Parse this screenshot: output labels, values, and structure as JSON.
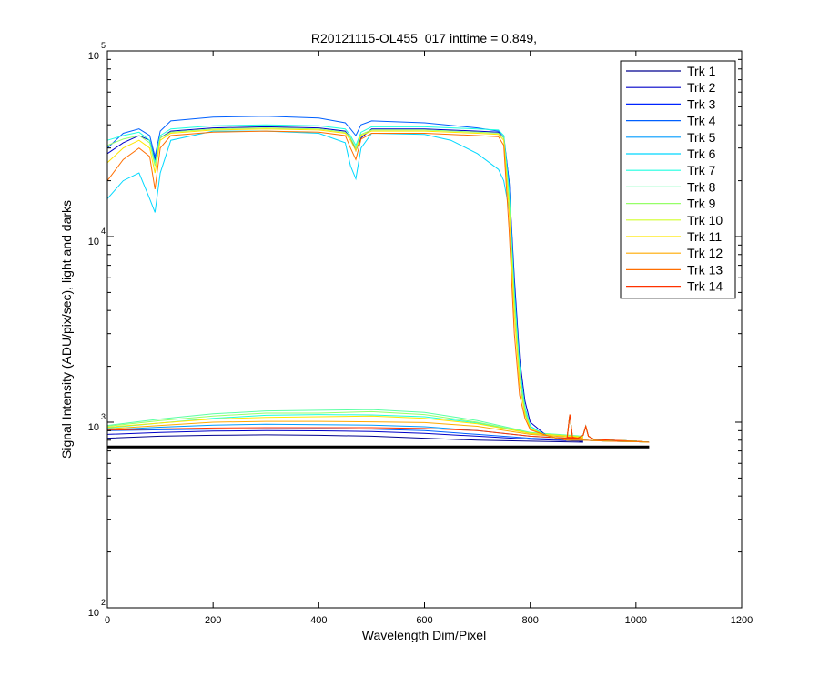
{
  "chart_data": {
    "type": "line",
    "title": "R20121115-OL455_017 inttime = 0.849,",
    "xlabel": "Wavelength Dim/Pixel",
    "ylabel": "Signal Intensity (ADU/pix/sec), light and darks",
    "xlim": [
      0,
      1200
    ],
    "ylim": [
      100,
      100000
    ],
    "yscale": "log",
    "grid": false,
    "legend_position": "top-right",
    "x_ticks": [
      0,
      200,
      400,
      600,
      800,
      1000,
      1200
    ],
    "x_tick_labels": [
      "0",
      "200",
      "400",
      "600",
      "800",
      "1000",
      "1200"
    ],
    "y_ticks": [
      {
        "value": 100,
        "base": "10",
        "exp": "2"
      },
      {
        "value": 1000,
        "base": "10",
        "exp": "3"
      },
      {
        "value": 10000,
        "base": "10",
        "exp": "4"
      },
      {
        "value": 100000,
        "base": "10",
        "exp": "5"
      }
    ],
    "series": [
      {
        "name": "Trk 1",
        "color": "#00008f"
      },
      {
        "name": "Trk 2",
        "color": "#0000c8"
      },
      {
        "name": "Trk 3",
        "color": "#0024ff"
      },
      {
        "name": "Trk 4",
        "color": "#0060ff"
      },
      {
        "name": "Trk 5",
        "color": "#009cff"
      },
      {
        "name": "Trk 6",
        "color": "#00d8ff"
      },
      {
        "name": "Trk 7",
        "color": "#1effe0"
      },
      {
        "name": "Trk 8",
        "color": "#5affa4"
      },
      {
        "name": "Trk 9",
        "color": "#96ff68"
      },
      {
        "name": "Trk 10",
        "color": "#d2ff2c"
      },
      {
        "name": "Trk 11",
        "color": "#ffe600"
      },
      {
        "name": "Trk 12",
        "color": "#ffaa00"
      },
      {
        "name": "Trk 13",
        "color": "#ff6e00"
      },
      {
        "name": "Trk 14",
        "color": "#ff3200"
      }
    ],
    "light_curves": [
      {
        "color": "#0000c8",
        "x": [
          0,
          30,
          60,
          80,
          90,
          100,
          120,
          200,
          300,
          400,
          450,
          460,
          470,
          480,
          500,
          600,
          700,
          740,
          750,
          760,
          770,
          780,
          790,
          800,
          830,
          850,
          870,
          900,
          950,
          1000,
          1025
        ],
        "y": [
          28000,
          32000,
          35000,
          33000,
          26000,
          34000,
          37000,
          38500,
          39000,
          38500,
          37000,
          34000,
          29000,
          34000,
          38000,
          38000,
          37000,
          36500,
          34000,
          20000,
          6000,
          2200,
          1300,
          1000,
          850,
          820,
          800,
          800,
          790,
          785,
          780
        ]
      },
      {
        "color": "#0060ff",
        "x": [
          0,
          30,
          60,
          80,
          90,
          100,
          120,
          200,
          300,
          400,
          450,
          460,
          470,
          480,
          500,
          600,
          700,
          740,
          750,
          760,
          770,
          780,
          790,
          800,
          830,
          850,
          870,
          900,
          950,
          1000,
          1025
        ],
        "y": [
          30000,
          36000,
          38000,
          35000,
          27000,
          37000,
          42000,
          44000,
          44500,
          43500,
          41000,
          38000,
          35000,
          40000,
          42000,
          41000,
          38500,
          37000,
          35000,
          20000,
          5500,
          2000,
          1200,
          950,
          850,
          820,
          800,
          800,
          790,
          785,
          780
        ]
      },
      {
        "color": "#00d8ff",
        "x": [
          0,
          30,
          60,
          80,
          90,
          100,
          120,
          200,
          300,
          400,
          450,
          460,
          470,
          480,
          500,
          600,
          650,
          700,
          740,
          750,
          760,
          770,
          780,
          790,
          800,
          830,
          850,
          870,
          900,
          950,
          1000,
          1025
        ],
        "y": [
          16000,
          20000,
          22000,
          16000,
          13500,
          22000,
          33000,
          37000,
          37000,
          36000,
          32000,
          24000,
          20500,
          30000,
          36000,
          35500,
          33000,
          28000,
          23000,
          20000,
          14000,
          5000,
          1800,
          1100,
          950,
          850,
          820,
          800,
          800,
          790,
          785,
          780
        ]
      },
      {
        "color": "#1effe0",
        "x": [
          0,
          30,
          60,
          80,
          90,
          100,
          120,
          200,
          300,
          400,
          450,
          460,
          470,
          480,
          500,
          600,
          700,
          740,
          750,
          760,
          770,
          780,
          790,
          800,
          830,
          850,
          870,
          900,
          950,
          1000,
          1025
        ],
        "y": [
          33000,
          35000,
          36500,
          33000,
          25000,
          35000,
          38000,
          39500,
          40000,
          39500,
          38000,
          35000,
          31000,
          36500,
          39000,
          39000,
          38000,
          37500,
          35000,
          18000,
          5000,
          2000,
          1200,
          950,
          850,
          820,
          800,
          800,
          790,
          785,
          780
        ]
      },
      {
        "color": "#96ff68",
        "x": [
          0,
          30,
          60,
          80,
          90,
          100,
          120,
          200,
          300,
          400,
          450,
          460,
          470,
          480,
          500,
          600,
          700,
          740,
          750,
          760,
          770,
          780,
          790,
          800,
          830,
          850,
          870,
          900,
          950,
          1000,
          1025
        ],
        "y": [
          31000,
          33500,
          35000,
          32000,
          24000,
          34000,
          36500,
          38000,
          38500,
          38000,
          36500,
          34000,
          30000,
          35500,
          37500,
          37500,
          36500,
          36000,
          34000,
          16000,
          4500,
          1800,
          1150,
          930,
          850,
          820,
          800,
          800,
          790,
          785,
          780
        ]
      },
      {
        "color": "#ffe600",
        "x": [
          0,
          30,
          60,
          80,
          90,
          100,
          120,
          200,
          300,
          400,
          450,
          460,
          470,
          480,
          500,
          600,
          700,
          740,
          750,
          760,
          770,
          780,
          790,
          800,
          830,
          850,
          870,
          900,
          950,
          1000,
          1025
        ],
        "y": [
          25000,
          30000,
          33000,
          30000,
          22000,
          33000,
          36000,
          37500,
          38000,
          37500,
          36000,
          33000,
          29000,
          35000,
          37000,
          37000,
          36000,
          35500,
          33000,
          14000,
          3800,
          1600,
          1100,
          920,
          850,
          820,
          800,
          800,
          790,
          785,
          780
        ]
      },
      {
        "color": "#ff6e00",
        "x": [
          0,
          30,
          60,
          80,
          90,
          100,
          120,
          200,
          300,
          400,
          450,
          460,
          470,
          480,
          500,
          600,
          700,
          740,
          750,
          760,
          770,
          780,
          790,
          800,
          830,
          850,
          870,
          900,
          950,
          1000,
          1025
        ],
        "y": [
          20000,
          26000,
          30000,
          27000,
          18000,
          30000,
          35000,
          36500,
          37000,
          36500,
          35000,
          30000,
          26000,
          33500,
          36000,
          36000,
          35000,
          34500,
          31000,
          11000,
          3000,
          1400,
          1050,
          910,
          850,
          820,
          800,
          800,
          790,
          785,
          780
        ]
      }
    ],
    "dark_curves": [
      {
        "color": "#00008f",
        "y": [
          820,
          840,
          850,
          855,
          850,
          840,
          820,
          800,
          790,
          780
        ]
      },
      {
        "color": "#0000c8",
        "y": [
          860,
          880,
          895,
          900,
          898,
          890,
          870,
          840,
          810,
          790
        ]
      },
      {
        "color": "#0060ff",
        "y": [
          900,
          910,
          918,
          920,
          922,
          918,
          900,
          860,
          820,
          800
        ]
      },
      {
        "color": "#009cff",
        "y": [
          910,
          940,
          965,
          975,
          970,
          965,
          945,
          900,
          840,
          810
        ]
      },
      {
        "color": "#1effe0",
        "y": [
          930,
          990,
          1050,
          1090,
          1100,
          1095,
          1070,
          990,
          870,
          830
        ]
      },
      {
        "color": "#5affa4",
        "y": [
          960,
          1040,
          1110,
          1150,
          1160,
          1170,
          1130,
          1020,
          880,
          840
        ]
      },
      {
        "color": "#96ff68",
        "y": [
          950,
          1020,
          1080,
          1120,
          1120,
          1140,
          1100,
          1000,
          875,
          835
        ]
      },
      {
        "color": "#ffe600",
        "y": [
          940,
          990,
          1040,
          1060,
          1070,
          1080,
          1050,
          980,
          870,
          830
        ]
      },
      {
        "color": "#ffaa00",
        "y": [
          920,
          960,
          1000,
          1010,
          1010,
          1005,
          995,
          950,
          860,
          820
        ]
      },
      {
        "color": "#ff3200",
        "y": [
          905,
          920,
          930,
          935,
          935,
          935,
          925,
          900,
          840,
          810
        ]
      }
    ],
    "dark_x": [
      0,
      100,
      200,
      300,
      400,
      500,
      600,
      700,
      800,
      900
    ],
    "dark_tail": {
      "x": [
        860,
        870,
        875,
        880,
        890,
        900,
        905,
        910,
        920,
        950,
        1000,
        1025
      ],
      "y": [
        800,
        830,
        1100,
        830,
        820,
        850,
        950,
        840,
        810,
        800,
        790,
        780
      ]
    },
    "baseline": {
      "color": "#000000",
      "x": [
        0,
        1025
      ],
      "y": [
        735,
        735
      ]
    }
  }
}
